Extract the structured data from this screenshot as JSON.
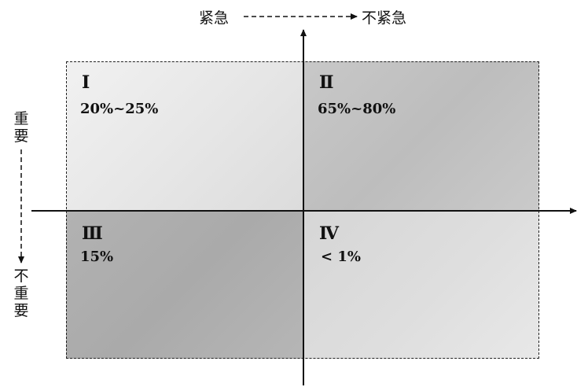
{
  "top_axis": {
    "left_label": "紧急",
    "right_label": "不紧急"
  },
  "left_axis": {
    "top_label": "重要",
    "bottom_label": "不重要"
  },
  "quadrants": [
    {
      "numeral": "Ⅰ",
      "value": "20%~25%"
    },
    {
      "numeral": "Ⅱ",
      "value": "65%~80%"
    },
    {
      "numeral": "Ⅲ",
      "value": "15%"
    },
    {
      "numeral": "Ⅳ",
      "value": "< 1%"
    }
  ],
  "colors": {
    "line": "#111111",
    "quadrant_1": "#e6e6e6",
    "quadrant_2": "#bdbdbd",
    "quadrant_3": "#aaaaaa",
    "quadrant_4": "#dedede"
  }
}
